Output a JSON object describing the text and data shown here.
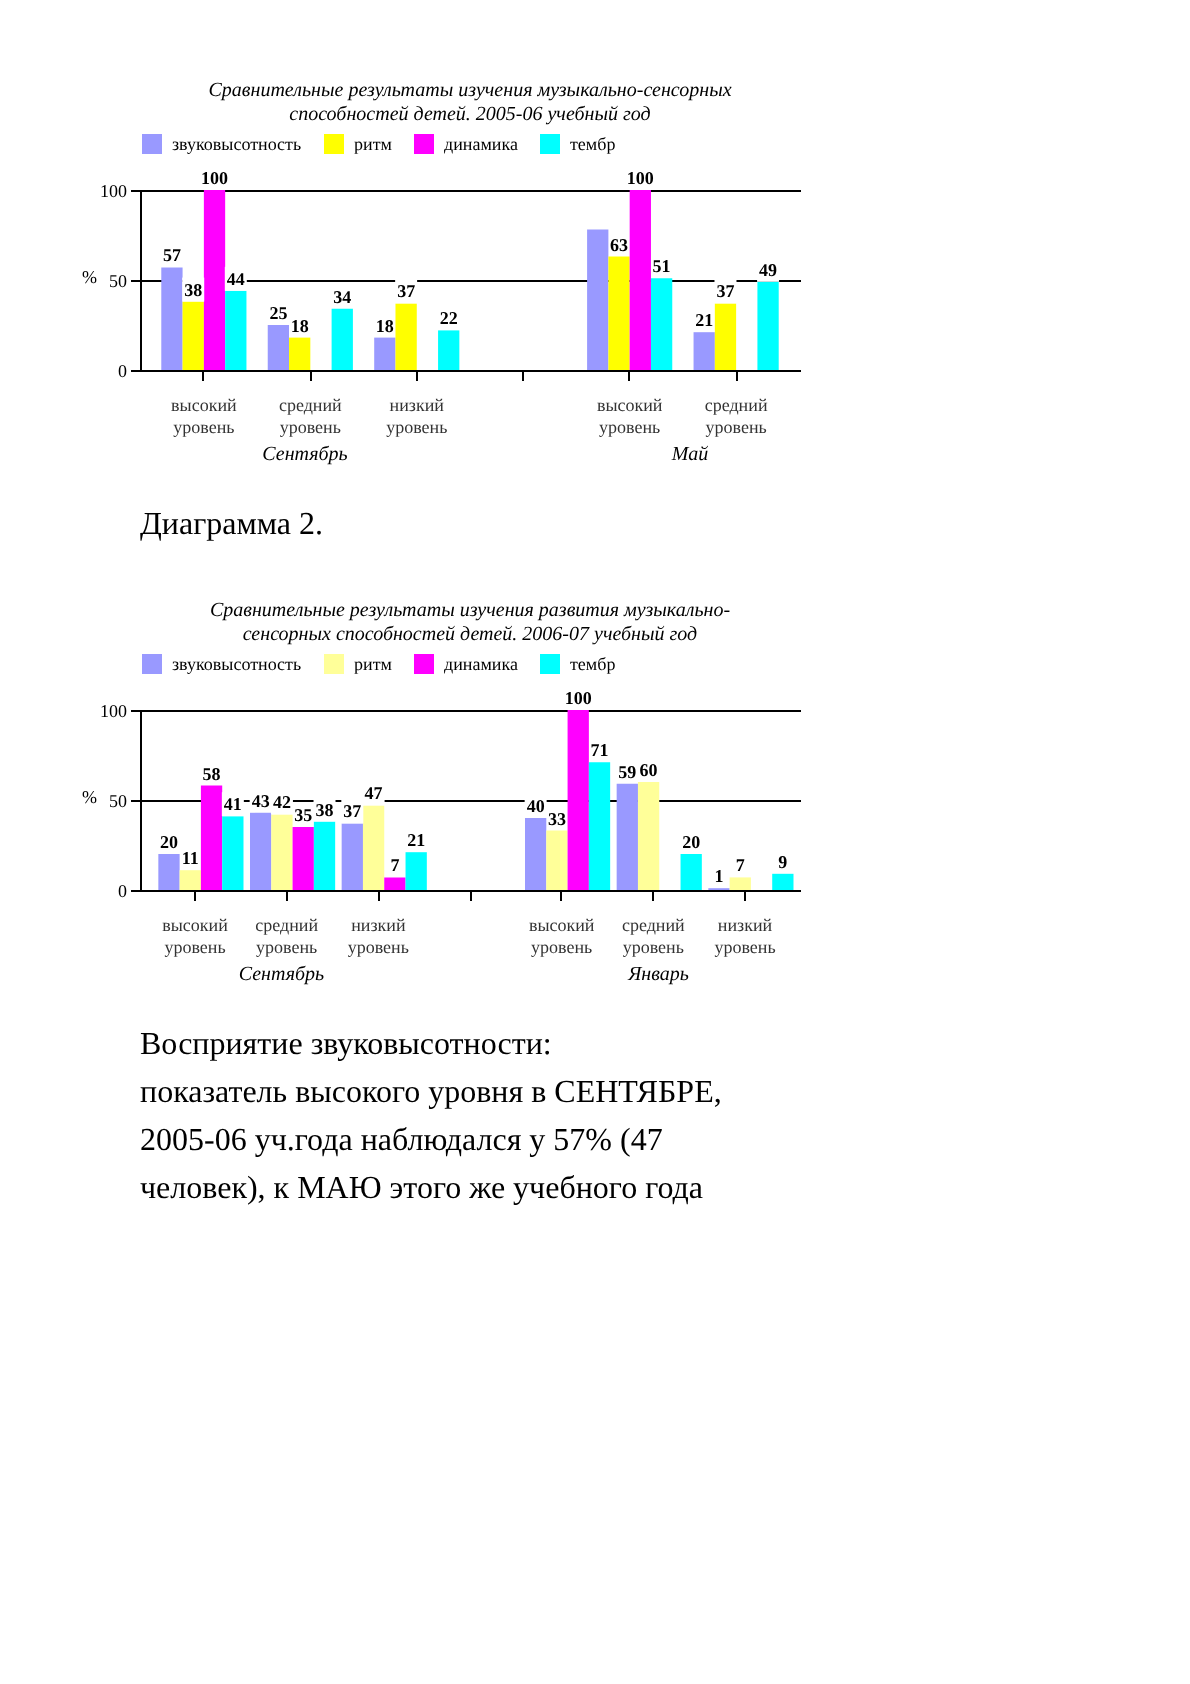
{
  "chart_data": [
    {
      "type": "bar",
      "title": "Сравнительные результаты изучения музыкально-сенсорных способностей детей. 2005-06 учебный год",
      "ylabel": "%",
      "categories": [
        "высокий уровень",
        "средний уровень",
        "низкий уровень",
        null,
        "высокий уровень",
        "средний уровень"
      ],
      "ylim": [
        0,
        100
      ],
      "yticks": [
        0,
        50,
        100
      ],
      "grid": "y",
      "legend": "top",
      "series": [
        {
          "name": "звуковысотность",
          "color": "#9999ff",
          "values": [
            57,
            25,
            18,
            null,
            78,
            21
          ],
          "value_labels": [
            "57",
            "25",
            "18",
            null,
            null,
            "21"
          ]
        },
        {
          "name": "ритм",
          "color": "#ffff00",
          "values": [
            38,
            18,
            37,
            null,
            63,
            37
          ],
          "value_labels": [
            "38",
            "18",
            "37",
            null,
            "63",
            "37"
          ]
        },
        {
          "name": "динамика",
          "color": "#ff00ff",
          "values": [
            100,
            null,
            null,
            null,
            100,
            null
          ],
          "value_labels": [
            "100",
            null,
            null,
            null,
            "100",
            null
          ]
        },
        {
          "name": "тембр",
          "color": "#00ffff",
          "values": [
            44,
            34,
            22,
            null,
            51,
            49
          ],
          "value_labels": [
            "44",
            "34",
            "22",
            null,
            "51",
            "49"
          ]
        }
      ],
      "annotations": [
        "Сентябрь",
        "Май",
        "Диаграмма 2."
      ]
    },
    {
      "type": "bar",
      "title": "Сравнительные результаты изучения развития музыкально-сенсорных способностей детей. 2006-07 учебный год",
      "ylabel": "%",
      "categories": [
        "высокий уровень",
        "средний уровень",
        "низкий уровень",
        null,
        "высокий уровень",
        "средний уровень",
        "низкий уровень"
      ],
      "ylim": [
        0,
        100
      ],
      "yticks": [
        0,
        50,
        100
      ],
      "grid": "y",
      "legend": "top",
      "data_labels": true,
      "series": [
        {
          "name": "звуковысотность",
          "color": "#9999ff",
          "values": [
            20,
            43,
            37,
            null,
            40,
            59,
            1
          ]
        },
        {
          "name": "ритм",
          "color": "#ffff99",
          "values": [
            11,
            42,
            47,
            null,
            33,
            60,
            7
          ]
        },
        {
          "name": "динамика",
          "color": "#ff00ff",
          "values": [
            58,
            35,
            7,
            null,
            100,
            null,
            null
          ]
        },
        {
          "name": "тембр",
          "color": "#00ffff",
          "values": [
            41,
            38,
            21,
            null,
            71,
            20,
            9
          ]
        }
      ],
      "annotations": [
        "Сентябрь",
        "Январь",
        "Восприятие звуковысотности:",
        "показатель высокого уровня в СЕНТЯБРЕ, 2005-06 уч.года наблюдался у 57% (47 человек), к МАЮ этого же учебного года"
      ]
    }
  ]
}
